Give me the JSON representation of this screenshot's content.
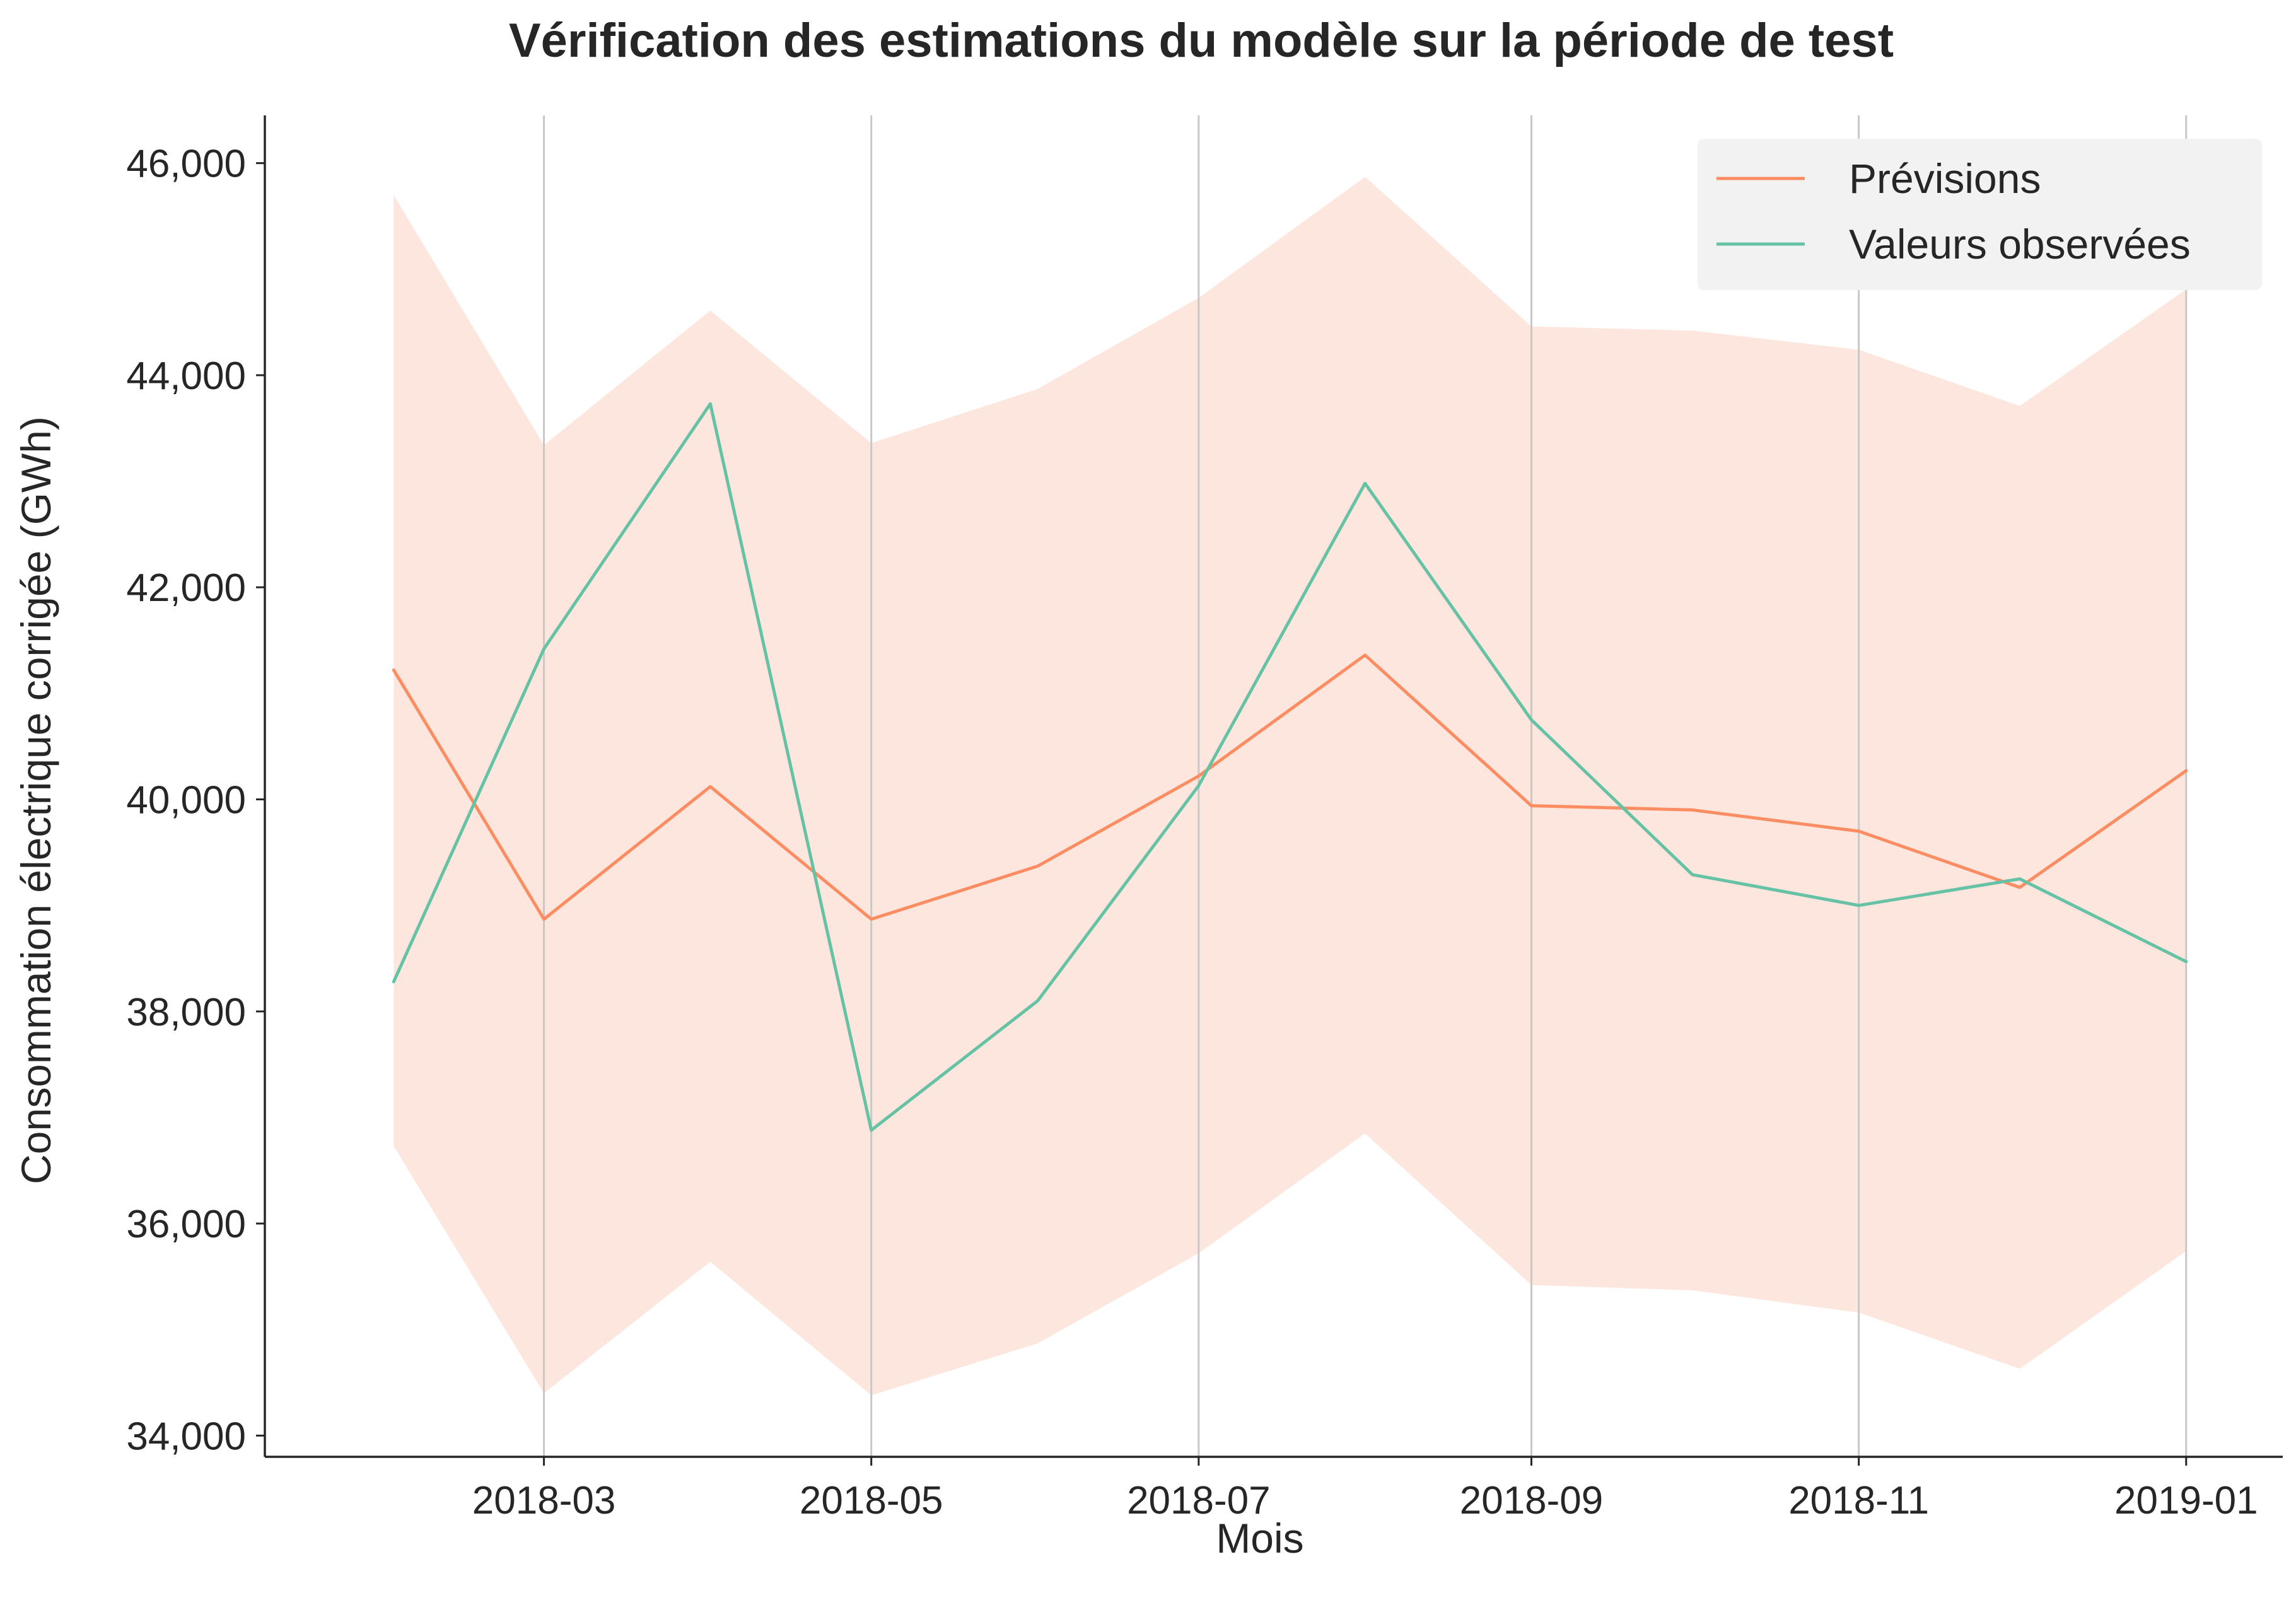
{
  "chart_data": {
    "type": "line",
    "title": "Vérification des estimations du modèle sur la période de test",
    "xlabel": "Mois",
    "ylabel": "Consommation électrique corrigée (GWh)",
    "x": [
      "2018-02",
      "2018-03",
      "2018-04",
      "2018-05",
      "2018-06",
      "2018-07",
      "2018-08",
      "2018-09",
      "2018-10",
      "2018-11",
      "2018-12",
      "2019-01"
    ],
    "x_ticks": [
      "2018-03",
      "2018-05",
      "2018-07",
      "2018-09",
      "2018-11",
      "2019-01"
    ],
    "y_ticks": [
      34000,
      36000,
      38000,
      40000,
      42000,
      44000,
      46000
    ],
    "y_tick_labels": [
      "34,000",
      "36,000",
      "38,000",
      "40,000",
      "42,000",
      "44,000",
      "46,000"
    ],
    "ylim": [
      33800,
      46450
    ],
    "xlim": [
      "2018-01-08",
      "2019-01-19"
    ],
    "grid": {
      "vertical": true,
      "horizontal": false
    },
    "legend_position": "top-right",
    "series": [
      {
        "name": "Prévisions",
        "color": "#fc8d62",
        "values": [
          41220,
          38870,
          40120,
          38870,
          39370,
          40220,
          41360,
          39940,
          39900,
          39700,
          39170,
          40270
        ]
      },
      {
        "name": "Valeurs observées",
        "color": "#66c2a5",
        "values": [
          38280,
          41420,
          43730,
          36880,
          38100,
          40130,
          42980,
          40750,
          39290,
          39000,
          39250,
          38470
        ]
      }
    ],
    "confidence_band": {
      "color": "#fde6dd",
      "lower": [
        36730,
        34400,
        35640,
        34380,
        34870,
        35720,
        36850,
        35420,
        35370,
        35160,
        34630,
        35740
      ],
      "upper": [
        45700,
        43340,
        44610,
        43360,
        43870,
        44730,
        45870,
        44460,
        44420,
        44240,
        43710,
        44810
      ]
    }
  }
}
